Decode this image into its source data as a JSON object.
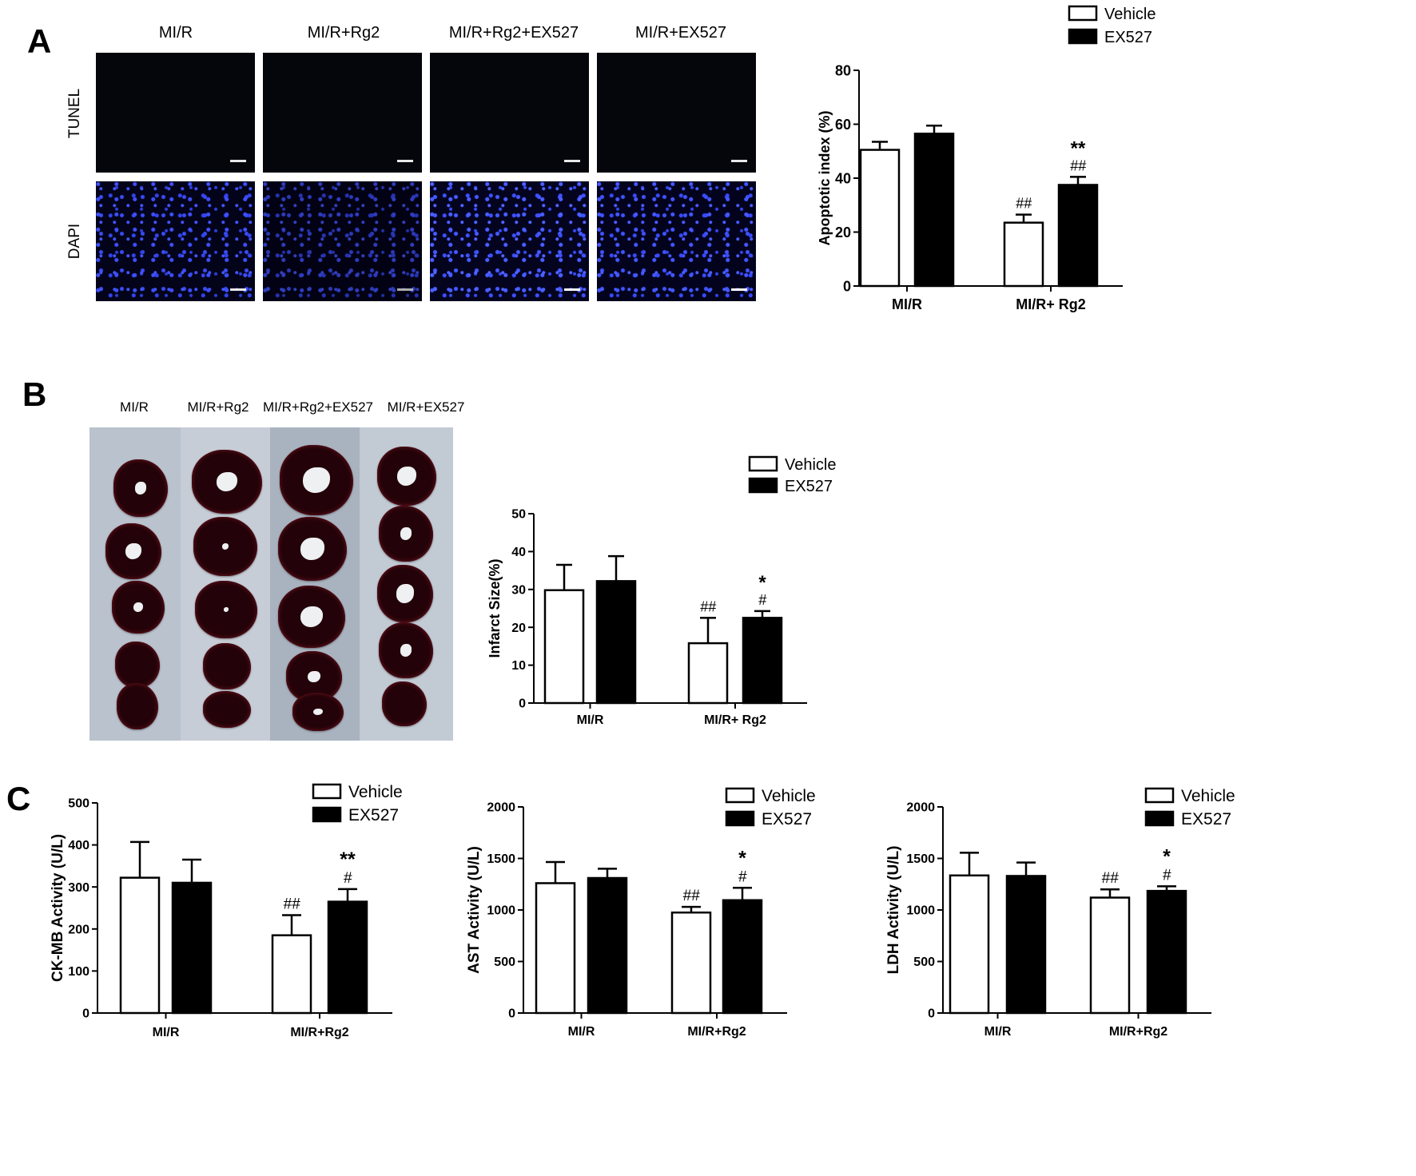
{
  "panel_letters": {
    "a": "A",
    "b": "B",
    "c": "C"
  },
  "panel_a": {
    "group_labels": [
      "MI/R",
      "MI/R+Rg2",
      "MI/R+Rg2+EX527",
      "MI/R+EX527"
    ],
    "row_labels": [
      "TUNEL",
      "DAPI"
    ]
  },
  "panel_b": {
    "group_labels": [
      "MI/R",
      "MI/R+Rg2",
      "MI/R+Rg2+EX527",
      "MI/R+EX527"
    ]
  },
  "colors": {
    "vehicle": "#ffffff",
    "ex527": "#000000",
    "dapi": "#3344ee",
    "tissue": "#230309"
  },
  "chart_data": [
    {
      "id": "apoptotic",
      "type": "bar",
      "ylabel": "Apoptotic index (%)",
      "ylim": [
        0,
        80
      ],
      "yticks": [
        0,
        20,
        40,
        60,
        80
      ],
      "categories": [
        "MI/R",
        "MI/R+ Rg2"
      ],
      "legend": [
        "Vehicle",
        "EX527"
      ],
      "series": [
        {
          "name": "Vehicle",
          "values": [
            50.5,
            23.5
          ],
          "errors": [
            3,
            3
          ],
          "annotations": [
            "",
            "##"
          ]
        },
        {
          "name": "EX527",
          "values": [
            56.5,
            37.5
          ],
          "errors": [
            3,
            3
          ],
          "annotations": [
            "",
            "##"
          ]
        }
      ],
      "extra_annotations": [
        {
          "category": 1,
          "series": 1,
          "text": "**"
        }
      ]
    },
    {
      "id": "infarct",
      "type": "bar",
      "ylabel": "Infarct Size(%)",
      "ylim": [
        0,
        50
      ],
      "yticks": [
        0,
        10,
        20,
        30,
        40,
        50
      ],
      "categories": [
        "MI/R",
        "MI/R+ Rg2"
      ],
      "legend": [
        "Vehicle",
        "EX527"
      ],
      "series": [
        {
          "name": "Vehicle",
          "values": [
            29.8,
            15.8
          ],
          "errors": [
            6.7,
            6.7
          ],
          "annotations": [
            "",
            "##"
          ]
        },
        {
          "name": "EX527",
          "values": [
            32.2,
            22.5
          ],
          "errors": [
            6.6,
            1.8
          ],
          "annotations": [
            "",
            "#"
          ]
        }
      ],
      "extra_annotations": [
        {
          "category": 1,
          "series": 1,
          "text": "*"
        }
      ]
    },
    {
      "id": "ckmb",
      "type": "bar",
      "ylabel": "CK-MB Activity (U/L)",
      "ylim": [
        0,
        500
      ],
      "yticks": [
        0,
        100,
        200,
        300,
        400,
        500
      ],
      "categories": [
        "MI/R",
        "MI/R+Rg2"
      ],
      "legend": [
        "Vehicle",
        "EX527"
      ],
      "series": [
        {
          "name": "Vehicle",
          "values": [
            322,
            185
          ],
          "errors": [
            85,
            48
          ],
          "annotations": [
            "",
            "##"
          ]
        },
        {
          "name": "EX527",
          "values": [
            310,
            265
          ],
          "errors": [
            55,
            30
          ],
          "annotations": [
            "",
            "#"
          ]
        }
      ],
      "extra_annotations": [
        {
          "category": 1,
          "series": 1,
          "text": "**"
        }
      ]
    },
    {
      "id": "ast",
      "type": "bar",
      "ylabel": "AST Activity (U/L)",
      "ylim": [
        0,
        2000
      ],
      "yticks": [
        0,
        500,
        1000,
        1500,
        2000
      ],
      "categories": [
        "MI/R",
        "MI/R+Rg2"
      ],
      "legend": [
        "Vehicle",
        "EX527"
      ],
      "series": [
        {
          "name": "Vehicle",
          "values": [
            1260,
            975
          ],
          "errors": [
            205,
            55
          ],
          "annotations": [
            "",
            "##"
          ]
        },
        {
          "name": "EX527",
          "values": [
            1310,
            1095
          ],
          "errors": [
            90,
            120
          ],
          "annotations": [
            "",
            "#"
          ]
        }
      ],
      "extra_annotations": [
        {
          "category": 1,
          "series": 1,
          "text": "*"
        }
      ]
    },
    {
      "id": "ldh",
      "type": "bar",
      "ylabel": "LDH Activity (U/L)",
      "ylim": [
        0,
        2000
      ],
      "yticks": [
        0,
        500,
        1000,
        1500,
        2000
      ],
      "categories": [
        "MI/R",
        "MI/R+Rg2"
      ],
      "legend": [
        "Vehicle",
        "EX527"
      ],
      "series": [
        {
          "name": "Vehicle",
          "values": [
            1335,
            1120
          ],
          "errors": [
            220,
            80
          ],
          "annotations": [
            "",
            "##"
          ]
        },
        {
          "name": "EX527",
          "values": [
            1330,
            1185
          ],
          "errors": [
            130,
            45
          ],
          "annotations": [
            "",
            "#"
          ]
        }
      ],
      "extra_annotations": [
        {
          "category": 1,
          "series": 1,
          "text": "*"
        }
      ]
    }
  ]
}
